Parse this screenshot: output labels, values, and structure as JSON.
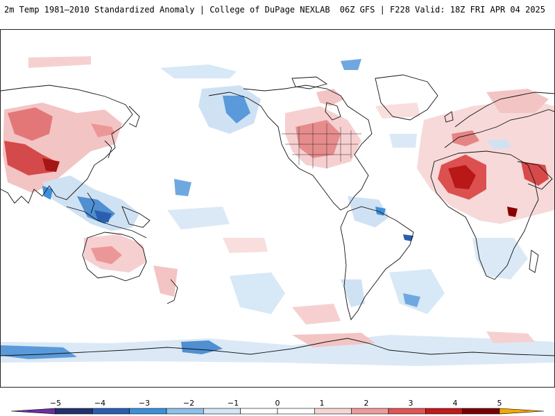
{
  "header": {
    "title_left": "2m Temp 1981–2010 Standardized Anomaly | College of DuPage NEXLAB",
    "title_right": "06Z GFS | F228 Valid: 18Z FRI APR 04 2025"
  },
  "map": {
    "projection": "Plate Carrée global",
    "variable": "2m temperature standardized anomaly",
    "baseline": "1981–2010",
    "model": "GFS",
    "run": "06Z",
    "forecast_hour": "F228",
    "valid": "18Z FRI APR 04 2025"
  },
  "colorbar": {
    "ticks": [
      "−5",
      "−4",
      "−3",
      "−2",
      "−1",
      "0",
      "1",
      "2",
      "3",
      "4",
      "5"
    ],
    "colors": [
      "#6a2fa0",
      "#23306b",
      "#2a5fb0",
      "#3f8fd8",
      "#8ec0ea",
      "#d4e6f6",
      "#ffffff",
      "#ffffff",
      "#f8d6d6",
      "#ef9b9b",
      "#e05555",
      "#c01a1a",
      "#7a0000",
      "#f4a800"
    ]
  }
}
